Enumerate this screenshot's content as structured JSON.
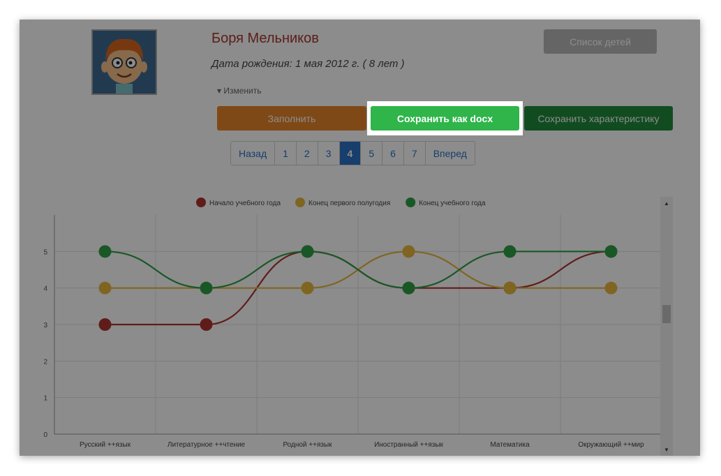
{
  "profile": {
    "name": "Боря Мельников",
    "birth": "Дата рождения: 1 мая 2012 г. ( 8 лет )",
    "edit_link": "▾ Изменить",
    "avatar_icon": "boy-cartoon-avatar"
  },
  "buttons": {
    "children_list": "Список детей",
    "fill": "Заполнить",
    "save_docx": "Сохранить как docx",
    "save_characteristic": "Сохранить характеристику"
  },
  "pagination": {
    "prev": "Назад",
    "pages": [
      "1",
      "2",
      "3",
      "4",
      "5",
      "6",
      "7"
    ],
    "active": "4",
    "next": "Вперед"
  },
  "chart_data": {
    "type": "line",
    "categories": [
      "Русский ++язык",
      "Литературное ++чтение",
      "Родной ++язык",
      "Иностранный ++язык",
      "Математика",
      "Окружающий ++мир"
    ],
    "series": [
      {
        "name": "Начало учебного года",
        "color": "#b0342f",
        "values": [
          3,
          3,
          5,
          4,
          4,
          5
        ]
      },
      {
        "name": "Конец первого полугодия",
        "color": "#e8b93c",
        "values": [
          4,
          4,
          4,
          5,
          4,
          4
        ]
      },
      {
        "name": "Конец учебного года",
        "color": "#2ea046",
        "values": [
          5,
          4,
          5,
          4,
          5,
          5
        ]
      }
    ],
    "yticks": [
      "0",
      "1",
      "2",
      "3",
      "4",
      "5"
    ],
    "ylim": [
      0,
      6
    ],
    "grid": true,
    "legend": "top-center"
  },
  "colors": {
    "overlay": "rgba(0,0,0,0.45)",
    "accent_green": "#2fb54a",
    "orange": "#e8862b",
    "dark_green": "#1f8a3b",
    "pager_blue": "#2b72c5",
    "name_red": "#a6372c"
  }
}
